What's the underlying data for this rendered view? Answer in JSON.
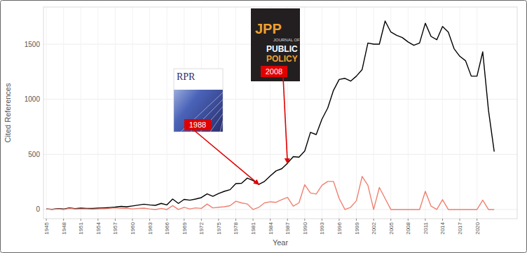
{
  "chart_data": {
    "type": "line",
    "x_label": "Year",
    "y_label": "Cited References",
    "x": [
      1945,
      1946,
      1947,
      1948,
      1949,
      1950,
      1951,
      1952,
      1953,
      1954,
      1955,
      1956,
      1957,
      1958,
      1959,
      1960,
      1961,
      1962,
      1963,
      1964,
      1965,
      1966,
      1967,
      1968,
      1969,
      1970,
      1971,
      1972,
      1973,
      1974,
      1975,
      1976,
      1977,
      1978,
      1979,
      1980,
      1981,
      1982,
      1983,
      1984,
      1985,
      1986,
      1987,
      1988,
      1989,
      1990,
      1991,
      1992,
      1993,
      1994,
      1995,
      1996,
      1997,
      1998,
      1999,
      2000,
      2001,
      2002,
      2003,
      2004,
      2005,
      2006,
      2007,
      2008,
      2009,
      2010,
      2011,
      2012,
      2013,
      2014,
      2015,
      2016,
      2017,
      2018,
      2019,
      2020,
      2021,
      2022,
      2023
    ],
    "series": [
      {
        "color": "#000000",
        "values": [
          5,
          2,
          8,
          4,
          15,
          8,
          12,
          10,
          10,
          12,
          15,
          18,
          22,
          28,
          25,
          32,
          40,
          48,
          42,
          38,
          55,
          42,
          95,
          55,
          92,
          85,
          95,
          108,
          142,
          120,
          145,
          165,
          180,
          235,
          238,
          285,
          262,
          228,
          255,
          305,
          350,
          370,
          420,
          480,
          475,
          530,
          700,
          680,
          820,
          920,
          1080,
          1180,
          1190,
          1165,
          1210,
          1270,
          1510,
          1500,
          1500,
          1710,
          1610,
          1580,
          1560,
          1520,
          1490,
          1510,
          1690,
          1570,
          1540,
          1660,
          1610,
          1460,
          1390,
          1350,
          1210,
          1210,
          1430,
          900,
          525
        ]
      },
      {
        "color": "#f08070",
        "values": [
          5,
          0,
          5,
          0,
          10,
          5,
          5,
          5,
          3,
          5,
          8,
          10,
          15,
          10,
          12,
          5,
          10,
          12,
          5,
          0,
          10,
          0,
          35,
          0,
          20,
          5,
          15,
          10,
          50,
          15,
          20,
          25,
          35,
          75,
          60,
          50,
          0,
          20,
          60,
          70,
          65,
          90,
          110,
          30,
          60,
          225,
          150,
          140,
          220,
          255,
          255,
          100,
          0,
          20,
          80,
          300,
          220,
          0,
          200,
          100,
          0,
          0,
          0,
          0,
          0,
          0,
          165,
          30,
          0,
          90,
          0,
          0,
          0,
          0,
          0,
          0,
          85,
          0,
          0
        ]
      }
    ],
    "xlim": [
      1944.5,
      2027
    ],
    "ylim": [
      -83,
      1837
    ],
    "xticks": [
      1945,
      1948,
      1951,
      1954,
      1957,
      1960,
      1963,
      1966,
      1969,
      1972,
      1975,
      1978,
      1981,
      1984,
      1987,
      1990,
      1993,
      1996,
      1999,
      2002,
      2005,
      2008,
      2011,
      2014,
      2017,
      2020
    ],
    "yticks": [
      0,
      500,
      1000,
      1500
    ],
    "grid": true,
    "annotations": [
      {
        "label": "1988",
        "x": 1982,
        "y": 228,
        "cover_text": [
          "RPR"
        ]
      },
      {
        "label": "2008",
        "x": 1987,
        "y": 420,
        "cover_text": [
          "JPP",
          "JOURNAL OF",
          "PUBLIC",
          "POLICY"
        ]
      }
    ]
  }
}
